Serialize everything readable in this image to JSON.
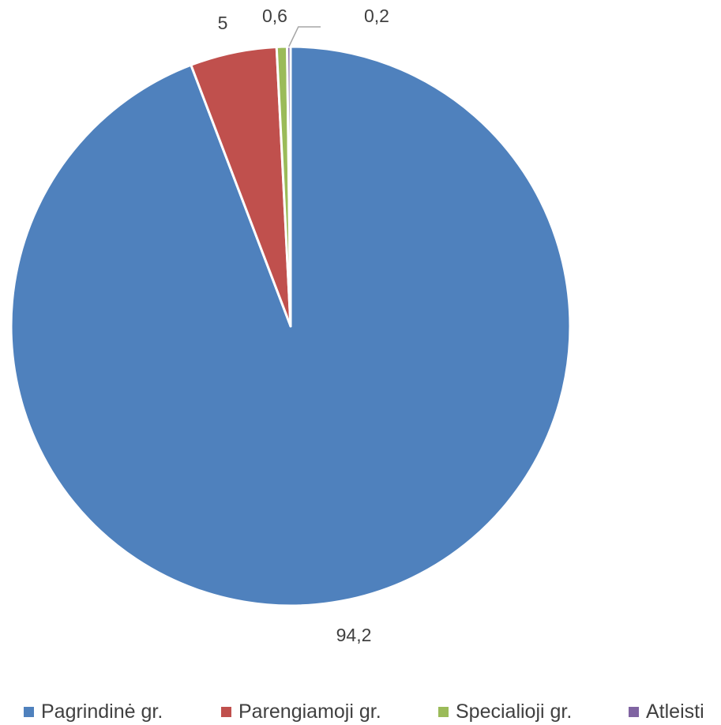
{
  "chart_data": {
    "type": "pie",
    "title": "",
    "categories": [
      "Pagrindinė gr.",
      "Parengiamoji gr.",
      "Specialioji gr.",
      "Atleisti"
    ],
    "values": [
      94.2,
      5,
      0.6,
      0.2
    ],
    "data_labels": [
      "94,2",
      "5",
      "0,6",
      "0,2"
    ],
    "colors": [
      "#4F81BD",
      "#C0504D",
      "#9BBB59",
      "#8064A2"
    ],
    "legend_position": "bottom",
    "start_angle": "12 o'clock",
    "direction": "clockwise"
  }
}
